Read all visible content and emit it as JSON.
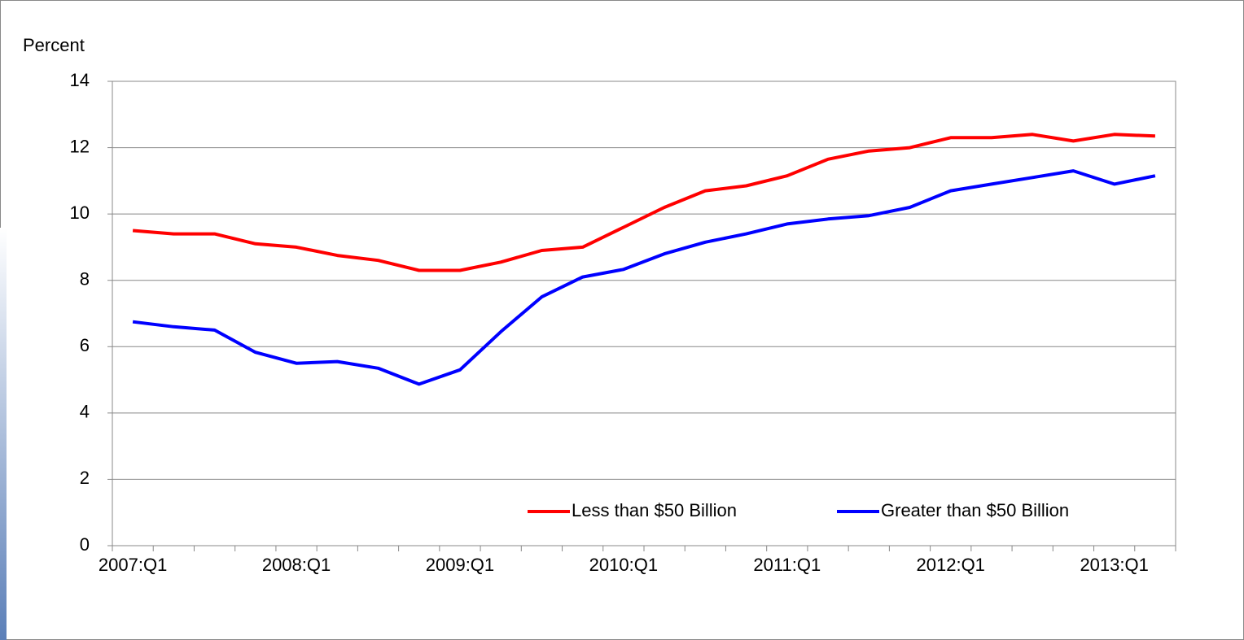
{
  "chart_data": {
    "type": "line",
    "y_label": "Percent",
    "categories": [
      "2007:Q1",
      null,
      null,
      null,
      "2008:Q1",
      null,
      null,
      null,
      "2009:Q1",
      null,
      null,
      null,
      "2010:Q1",
      null,
      null,
      null,
      "2011:Q1",
      null,
      null,
      null,
      "2012:Q1",
      null,
      null,
      null,
      "2013:Q1",
      null
    ],
    "series": [
      {
        "name": "Less than $50 Billion",
        "color": "#ff0000",
        "values": [
          9.5,
          9.4,
          9.4,
          9.1,
          9.0,
          8.75,
          8.6,
          8.3,
          8.3,
          8.55,
          8.9,
          9.0,
          9.6,
          10.2,
          10.7,
          10.85,
          11.15,
          11.65,
          11.9,
          12.0,
          12.3,
          12.3,
          12.4,
          12.2,
          12.4,
          12.35
        ]
      },
      {
        "name": "Greater than $50 Billion",
        "color": "#0000ff",
        "values": [
          6.75,
          6.6,
          6.5,
          5.83,
          5.5,
          5.55,
          5.35,
          4.87,
          5.3,
          6.45,
          7.5,
          8.1,
          8.33,
          8.8,
          9.15,
          9.4,
          9.7,
          9.85,
          9.95,
          10.2,
          10.7,
          10.9,
          11.1,
          11.3,
          10.9,
          11.15
        ]
      }
    ],
    "ylim": [
      0,
      14
    ],
    "yticks": [
      0,
      2,
      4,
      6,
      8,
      10,
      12,
      14
    ],
    "grid": true,
    "legend": "lower right"
  }
}
